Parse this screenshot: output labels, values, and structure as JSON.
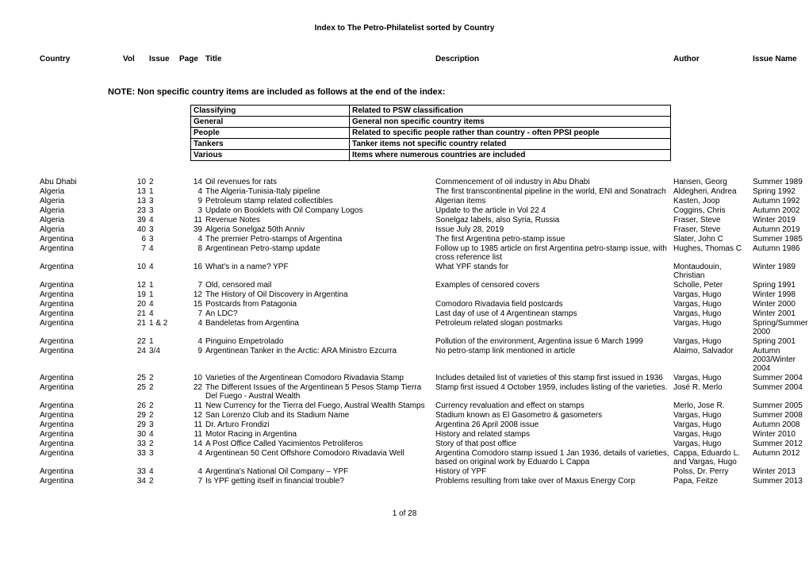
{
  "page_title": "Index to The Petro-Philatelist sorted by Country",
  "columns": {
    "country": "Country",
    "vol": "Vol",
    "issue": "Issue",
    "page": "Page",
    "title": "Title",
    "description": "Description",
    "author": "Author",
    "issue_name": "Issue Name"
  },
  "note": "NOTE: Non specific country items are included as follows at the end of the index:",
  "classifying": [
    {
      "k": "Classifying",
      "v": "Related to PSW classification"
    },
    {
      "k": "General",
      "v": "General non specific country items"
    },
    {
      "k": "People",
      "v": "Related to specific people rather than country - often PPSI people"
    },
    {
      "k": "Tankers",
      "v": "Tanker items not specific country related"
    },
    {
      "k": "Various",
      "v": "Items where numerous countries are included"
    }
  ],
  "rows": [
    {
      "country": "Abu Dhabi",
      "vol": "10",
      "issue": "2",
      "page": "14",
      "title": "Oil revenues for rats",
      "desc": "Commencement of oil industry in Abu Dhabi",
      "author": "Hansen, Georg",
      "issue_name": "Summer 1989"
    },
    {
      "country": "Algeria",
      "vol": "13",
      "issue": "1",
      "page": "4",
      "title": "The Algeria-Tunisia-Italy pipeline",
      "desc": "The first transcontinental pipeline in the world, ENI and Sonatrach",
      "author": "Aldegheri, Andrea",
      "issue_name": "Spring 1992"
    },
    {
      "country": "Algeria",
      "vol": "13",
      "issue": "3",
      "page": "9",
      "title": "Petroleum stamp related collectibles",
      "desc": "Algerian items",
      "author": "Kasten, Joop",
      "issue_name": "Autumn 1992"
    },
    {
      "country": "Algeria",
      "vol": "23",
      "issue": "3",
      "page": "3",
      "title": "Update on Booklets with Oil Company Logos",
      "desc": "Update to the article in Vol 22 4",
      "author": "Coggins, Chris",
      "issue_name": "Autumn 2002"
    },
    {
      "country": "Algeria",
      "vol": "39",
      "issue": "4",
      "page": "11",
      "title": "Revenue Notes",
      "desc": "Sonelgaz labels, also Syria, Russia",
      "author": "Fraser, Steve",
      "issue_name": "Winter 2019"
    },
    {
      "country": "Algeria",
      "vol": "40",
      "issue": "3",
      "page": "39",
      "title": "Algeria Sonelgaz 50th Anniv",
      "desc": "Issue July 28, 2019",
      "author": "Fraser, Steve",
      "issue_name": "Autumn 2019"
    },
    {
      "country": "Argentina",
      "vol": "6",
      "issue": "3",
      "page": "4",
      "title": "The premier Petro-stamps of Argentina",
      "desc": "The first Argentina petro-stamp issue",
      "author": "Slater, John C",
      "issue_name": "Summer 1985"
    },
    {
      "country": "Argentina",
      "vol": "7",
      "issue": "4",
      "page": "8",
      "title": "Argentinean Petro-stamp update",
      "desc": "Follow up to 1985 article on first Argentina petro-stamp issue, with cross reference list",
      "author": "Hughes, Thomas C",
      "issue_name": "Autumn 1986"
    },
    {
      "country": "Argentina",
      "vol": "10",
      "issue": "4",
      "page": "16",
      "title": "What's in a name? YPF",
      "desc": "What YPF stands for",
      "author": "Montaudouin, Christian",
      "issue_name": "Winter 1989"
    },
    {
      "country": "Argentina",
      "vol": "12",
      "issue": "1",
      "page": "7",
      "title": "Old, censored mail",
      "desc": "Examples of censored covers",
      "author": "Scholle, Peter",
      "issue_name": "Spring 1991"
    },
    {
      "country": "Argentina",
      "vol": "19",
      "issue": "1",
      "page": "12",
      "title": "The History of Oil Discovery in Argentina",
      "desc": "",
      "author": "Vargas, Hugo",
      "issue_name": "Winter 1998"
    },
    {
      "country": "Argentina",
      "vol": "20",
      "issue": "4",
      "page": "15",
      "title": "Postcards from Patagonia",
      "desc": "Comodoro Rivadavia field postcards",
      "author": "Vargas, Hugo",
      "issue_name": "Winter 2000"
    },
    {
      "country": "Argentina",
      "vol": "21",
      "issue": "4",
      "page": "7",
      "title": "An LDC?",
      "desc": "Last day of use of 4 Argentinean stamps",
      "author": "Vargas, Hugo",
      "issue_name": "Winter 2001"
    },
    {
      "country": "Argentina",
      "vol": "21",
      "issue": "1 & 2",
      "page": "4",
      "title": "Bandeletas from Argentina",
      "desc": "Petroleum related slogan postmarks",
      "author": "Vargas, Hugo",
      "issue_name": "Spring/Summer 2000"
    },
    {
      "country": "Argentina",
      "vol": "22",
      "issue": "1",
      "page": "4",
      "title": "Pinguino Empetrolado",
      "desc": "Pollution of the environment, Argentina issue 6 March 1999",
      "author": "Vargas, Hugo",
      "issue_name": "Spring 2001"
    },
    {
      "country": "Argentina",
      "vol": "24",
      "issue": "3/4",
      "page": "9",
      "title": "Argentinean Tanker in the Arctic: ARA Ministro Ezcurra",
      "desc": "No petro-stamp link mentioned in article",
      "author": "Alaimo, Salvador",
      "issue_name": "Autumn 2003/Winter 2004"
    },
    {
      "country": "Argentina",
      "vol": "25",
      "issue": "2",
      "page": "10",
      "title": "Varieties of the Argentinean Comodoro Rivadavia Stamp",
      "desc": "Includes detailed list of varieties of this stamp first issued in 1936",
      "author": "Vargas, Hugo",
      "issue_name": "Summer 2004"
    },
    {
      "country": "Argentina",
      "vol": "25",
      "issue": "2",
      "page": "22",
      "title": "The Different Issues of the Argentinean 5 Pesos Stamp Tierra Del Fuego - Austral Wealth",
      "desc": "Stamp first issued  4 October 1959, includes listing of the varieties.",
      "author": "José R. Merlo",
      "issue_name": "Summer 2004"
    },
    {
      "country": "Argentina",
      "vol": "26",
      "issue": "2",
      "page": "11",
      "title": "New Currency for the Tierra del Fuego, Austral Wealth Stamps",
      "desc": "Currency revaluation and effect on stamps",
      "author": "Merlo, Jose R.",
      "issue_name": "Summer 2005"
    },
    {
      "country": "Argentina",
      "vol": "29",
      "issue": "2",
      "page": "12",
      "title": "San Lorenzo Club and its Stadium Name",
      "desc": "Stadium known as El Gasometro & gasometers",
      "author": "Vargas, Hugo",
      "issue_name": "Summer 2008"
    },
    {
      "country": "Argentina",
      "vol": "29",
      "issue": "3",
      "page": "11",
      "title": "Dr. Arturo Frondizi",
      "desc": "Argentina 26 April 2008 issue",
      "author": "Vargas, Hugo",
      "issue_name": "Autumn 2008"
    },
    {
      "country": "Argentina",
      "vol": "30",
      "issue": "4",
      "page": "11",
      "title": "Motor Racing in Argentina",
      "desc": "History and related stamps",
      "author": "Vargas, Hugo",
      "issue_name": "Winter 2010"
    },
    {
      "country": "Argentina",
      "vol": "33",
      "issue": "2",
      "page": "14",
      "title": "A Post Office Called Yacimientos Petroliferos",
      "desc": "Story of that post office",
      "author": "Vargas, Hugo",
      "issue_name": "Summer 2012"
    },
    {
      "country": "Argentina",
      "vol": "33",
      "issue": "3",
      "page": "4",
      "title": "Argentinean 50 Cent Offshore Comodoro Rivadavia Well",
      "desc": "Argentina Comodoro stamp issued 1 Jan 1936, details of varieties, based on original work by Eduardo L Cappa",
      "author": "Cappa, Eduardo L. and Vargas, Hugo",
      "issue_name": "Autumn 2012"
    },
    {
      "country": "Argentina",
      "vol": "33",
      "issue": "4",
      "page": "4",
      "title": "Argentina's National Oil Company – YPF",
      "desc": "History of YPF",
      "author": "Polss, Dr. Perry",
      "issue_name": "Winter 2013"
    },
    {
      "country": "Argentina",
      "vol": "34",
      "issue": "2",
      "page": "7",
      "title": "Is YPF getting itself in financial trouble?",
      "desc": "Problems resulting from take over of Maxus Energy Corp",
      "author": "Papa, Feitze",
      "issue_name": "Summer 2013"
    }
  ],
  "footer": "1 of  28"
}
